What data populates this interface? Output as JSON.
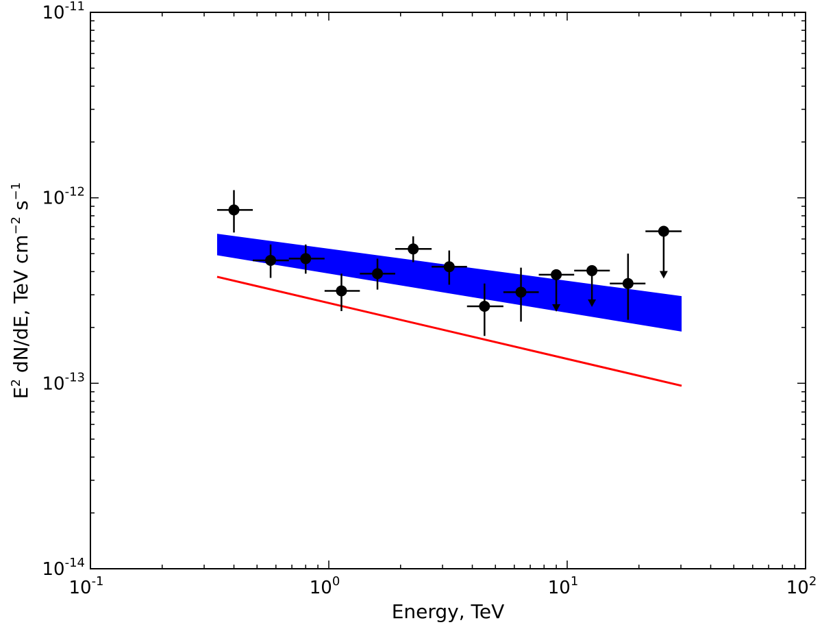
{
  "chart_data": {
    "type": "scatter",
    "title": "",
    "xlabel": "Energy, TeV",
    "ylabel": "E² dN/dE, TeV cm⁻² s⁻¹",
    "ylabel_parts": {
      "a": "E",
      "a_sup": "2",
      "b": " dN/dE, TeV cm",
      "b_sup": "−2",
      "c": " s",
      "c_sup": "−1"
    },
    "xscale": "log",
    "yscale": "log",
    "xlim": [
      0.1,
      100
    ],
    "ylim": [
      1e-14,
      1e-11
    ],
    "x_ticks": [
      {
        "value": 0.1,
        "base": "10",
        "exp": "-1"
      },
      {
        "value": 1,
        "base": "10",
        "exp": "0"
      },
      {
        "value": 10,
        "base": "10",
        "exp": "1"
      },
      {
        "value": 100,
        "base": "10",
        "exp": "2"
      }
    ],
    "y_ticks": [
      {
        "value": 1e-14,
        "base": "10",
        "exp": "-14"
      },
      {
        "value": 1e-13,
        "base": "10",
        "exp": "-13"
      },
      {
        "value": 1e-12,
        "base": "10",
        "exp": "-12"
      },
      {
        "value": 1e-11,
        "base": "10",
        "exp": "-11"
      }
    ],
    "points": [
      {
        "x": 0.4,
        "y": 8.6e-13,
        "xlo": 0.34,
        "xhi": 0.48,
        "ylo": 6.5e-13,
        "yhi": 1.1e-12,
        "upper_limit": false
      },
      {
        "x": 0.57,
        "y": 4.6e-13,
        "xlo": 0.48,
        "xhi": 0.68,
        "ylo": 3.7e-13,
        "yhi": 5.6e-13,
        "upper_limit": false
      },
      {
        "x": 0.8,
        "y": 4.7e-13,
        "xlo": 0.68,
        "xhi": 0.96,
        "ylo": 3.9e-13,
        "yhi": 5.6e-13,
        "upper_limit": false
      },
      {
        "x": 1.13,
        "y": 3.15e-13,
        "xlo": 0.96,
        "xhi": 1.35,
        "ylo": 2.45e-13,
        "yhi": 3.9e-13,
        "upper_limit": false
      },
      {
        "x": 1.6,
        "y": 3.9e-13,
        "xlo": 1.35,
        "xhi": 1.9,
        "ylo": 3.2e-13,
        "yhi": 4.7e-13,
        "upper_limit": false
      },
      {
        "x": 2.26,
        "y": 5.3e-13,
        "xlo": 1.9,
        "xhi": 2.7,
        "ylo": 4.5e-13,
        "yhi": 6.2e-13,
        "upper_limit": false
      },
      {
        "x": 3.2,
        "y": 4.25e-13,
        "xlo": 2.7,
        "xhi": 3.8,
        "ylo": 3.4e-13,
        "yhi": 5.2e-13,
        "upper_limit": false
      },
      {
        "x": 4.5,
        "y": 2.6e-13,
        "xlo": 3.8,
        "xhi": 5.4,
        "ylo": 1.8e-13,
        "yhi": 3.45e-13,
        "upper_limit": false
      },
      {
        "x": 6.4,
        "y": 3.1e-13,
        "xlo": 5.4,
        "xhi": 7.6,
        "ylo": 2.15e-13,
        "yhi": 4.2e-13,
        "upper_limit": false
      },
      {
        "x": 9.0,
        "y": 3.85e-13,
        "xlo": 7.6,
        "xhi": 10.7,
        "ylo": 2.45e-13,
        "yhi": 3.85e-13,
        "upper_limit": true
      },
      {
        "x": 12.7,
        "y": 4.05e-13,
        "xlo": 10.7,
        "xhi": 15.1,
        "ylo": 2.6e-13,
        "yhi": 4.05e-13,
        "upper_limit": true
      },
      {
        "x": 18.0,
        "y": 3.45e-13,
        "xlo": 15.1,
        "xhi": 21.3,
        "ylo": 2.2e-13,
        "yhi": 5e-13,
        "upper_limit": false
      },
      {
        "x": 25.4,
        "y": 6.6e-13,
        "xlo": 21.3,
        "xhi": 30.2,
        "ylo": 3.7e-13,
        "yhi": 6.6e-13,
        "upper_limit": true
      }
    ],
    "band": {
      "color": "#0000ff",
      "x": [
        0.34,
        30.2
      ],
      "upper": [
        6.4e-13,
        2.95e-13
      ],
      "lower": [
        4.9e-13,
        1.9e-13
      ]
    },
    "line": {
      "color": "#ff0000",
      "x": [
        0.34,
        30.2
      ],
      "y": [
        3.75e-13,
        9.7e-14
      ]
    }
  }
}
